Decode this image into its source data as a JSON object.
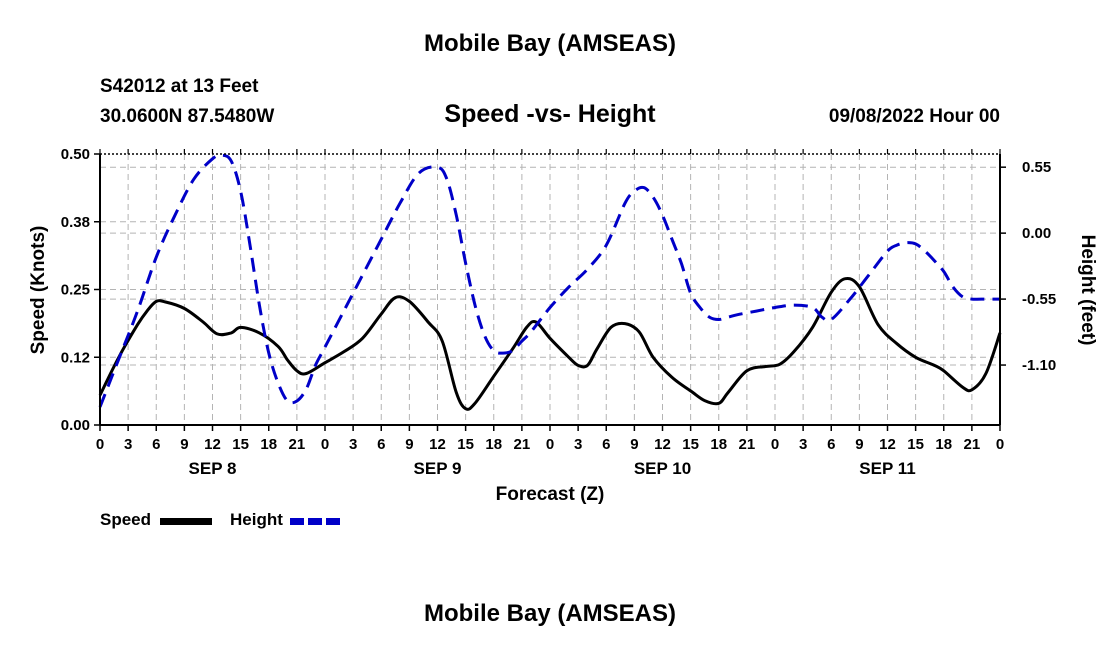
{
  "page_title": "Mobile Bay (AMSEAS)",
  "footer_title": "Mobile Bay (AMSEAS)",
  "header": {
    "station": "S42012 at 13 Feet",
    "coordinates": "30.0600N  87.5480W",
    "run_date": "09/08/2022 Hour 00"
  },
  "colors": {
    "speed": "#000000",
    "height": "#0000c8",
    "grid": "#b4b4b4"
  },
  "chart_data": {
    "type": "line",
    "title": "Speed -vs- Height",
    "xlabel": "Forecast (Z)",
    "ylabel": "Speed (Knots)",
    "ylabel_right": "Height (feet)",
    "x_range": [
      0,
      96
    ],
    "ylim": [
      0,
      0.5
    ],
    "ylim_right": [
      -1.6,
      0.66
    ],
    "x_tick_labels": [
      "0",
      "3",
      "6",
      "9",
      "12",
      "15",
      "18",
      "21",
      "0",
      "3",
      "6",
      "9",
      "12",
      "15",
      "18",
      "21",
      "0",
      "3",
      "6",
      "9",
      "12",
      "15",
      "18",
      "21",
      "0",
      "3",
      "6",
      "9",
      "12",
      "15",
      "18",
      "21",
      "0"
    ],
    "day_labels": [
      {
        "label": "SEP 8",
        "hour": 12
      },
      {
        "label": "SEP 9",
        "hour": 36
      },
      {
        "label": "SEP 10",
        "hour": 60
      },
      {
        "label": "SEP 11",
        "hour": 84
      }
    ],
    "y_ticks_left": [
      {
        "value": 0,
        "label": "0.00"
      },
      {
        "value": 0.125,
        "label": "0.12"
      },
      {
        "value": 0.25,
        "label": "0.25"
      },
      {
        "value": 0.375,
        "label": "0.38"
      },
      {
        "value": 0.5,
        "label": "0.50"
      }
    ],
    "y_ticks_right": [
      {
        "value": 0.55,
        "label": "0.55"
      },
      {
        "value": 0.0,
        "label": "0.00"
      },
      {
        "value": -0.55,
        "label": "-0.55"
      },
      {
        "value": -1.1,
        "label": "-1.10"
      }
    ],
    "legend": [
      {
        "name": "Speed"
      },
      {
        "name": "Height"
      }
    ],
    "series": [
      {
        "name": "Speed",
        "axis": "left",
        "style": "solid",
        "x": [
          0,
          2,
          4,
          5,
          6,
          7,
          9,
          11,
          12.5,
          14,
          15,
          17,
          19,
          20,
          21,
          22,
          24,
          26,
          28,
          30,
          31.5,
          33,
          35,
          36.5,
          38,
          39,
          40,
          42,
          44,
          45.5,
          46.5,
          48,
          50,
          51,
          52,
          53,
          54.5,
          56,
          57.5,
          59,
          61,
          63,
          64.5,
          66,
          67,
          69,
          71,
          72.5,
          74,
          76,
          78,
          79.5,
          81,
          83,
          85,
          87,
          89,
          90,
          92,
          93,
          94.5,
          96
        ],
        "values": [
          0.055,
          0.125,
          0.185,
          0.21,
          0.228,
          0.227,
          0.215,
          0.19,
          0.168,
          0.17,
          0.18,
          0.17,
          0.145,
          0.12,
          0.1,
          0.095,
          0.115,
          0.135,
          0.16,
          0.205,
          0.235,
          0.228,
          0.19,
          0.155,
          0.06,
          0.03,
          0.04,
          0.09,
          0.14,
          0.18,
          0.19,
          0.16,
          0.125,
          0.11,
          0.11,
          0.14,
          0.18,
          0.187,
          0.172,
          0.125,
          0.088,
          0.063,
          0.045,
          0.04,
          0.06,
          0.1,
          0.108,
          0.112,
          0.135,
          0.18,
          0.245,
          0.27,
          0.255,
          0.185,
          0.15,
          0.125,
          0.11,
          0.1,
          0.07,
          0.065,
          0.095,
          0.17
        ]
      },
      {
        "name": "Height",
        "axis": "right",
        "style": "dashed",
        "x": [
          0,
          2,
          4,
          6,
          8,
          10,
          12,
          13,
          14,
          15,
          16,
          17,
          18,
          19,
          20,
          21,
          22,
          23,
          24,
          26,
          28,
          30,
          32,
          34,
          36,
          37,
          38,
          39,
          40,
          41,
          42,
          43,
          44,
          45,
          46,
          48,
          50,
          52,
          54,
          56,
          57,
          58,
          59,
          60,
          61,
          62,
          63,
          64,
          65,
          66,
          67,
          68,
          70,
          72,
          74,
          76,
          77,
          78,
          80,
          82,
          84,
          85,
          86,
          87,
          88,
          89,
          90,
          91,
          92,
          93,
          94,
          96
        ],
        "values": [
          -1.45,
          -1.05,
          -0.65,
          -0.2,
          0.15,
          0.45,
          0.62,
          0.65,
          0.6,
          0.35,
          -0.1,
          -0.6,
          -1.0,
          -1.25,
          -1.4,
          -1.4,
          -1.3,
          -1.1,
          -0.95,
          -0.65,
          -0.35,
          -0.05,
          0.25,
          0.5,
          0.55,
          0.45,
          0.15,
          -0.25,
          -0.6,
          -0.85,
          -0.98,
          -1.0,
          -0.98,
          -0.9,
          -0.82,
          -0.62,
          -0.45,
          -0.3,
          -0.1,
          0.25,
          0.35,
          0.38,
          0.3,
          0.15,
          -0.05,
          -0.25,
          -0.5,
          -0.62,
          -0.7,
          -0.72,
          -0.7,
          -0.68,
          -0.65,
          -0.62,
          -0.6,
          -0.62,
          -0.7,
          -0.72,
          -0.55,
          -0.35,
          -0.15,
          -0.1,
          -0.08,
          -0.09,
          -0.15,
          -0.23,
          -0.32,
          -0.45,
          -0.53,
          -0.55,
          -0.55,
          -0.55
        ]
      }
    ]
  }
}
